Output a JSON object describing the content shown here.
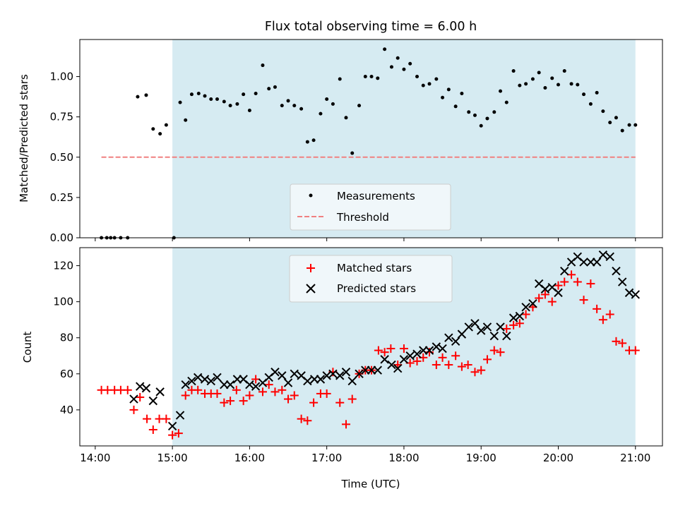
{
  "figure": {
    "title": "Flux total observing time = 6.00 h",
    "xlabel": "Time (UTC)"
  },
  "chart_data": [
    {
      "type": "scatter",
      "panel": "top",
      "title": "Flux total observing time = 6.00 h",
      "xlabel": "",
      "ylabel": "Matched/Predicted stars",
      "x_unit": "hours UTC",
      "xlim": [
        13.8,
        21.35
      ],
      "ylim": [
        0.0,
        1.23
      ],
      "xticks": [
        14,
        15,
        16,
        17,
        18,
        19,
        20,
        21
      ],
      "xtick_labels": [
        "",
        "",
        "",
        "",
        "",
        "",
        "",
        ""
      ],
      "yticks": [
        0.0,
        0.25,
        0.5,
        0.75,
        1.0
      ],
      "ytick_labels": [
        "0.00",
        "0.25",
        "0.50",
        "0.75",
        "1.00"
      ],
      "shaded_region": {
        "x": [
          15.0,
          21.0
        ],
        "color": "#add8e6"
      },
      "legend": {
        "placement": "lower center",
        "entries": [
          "Measurements",
          "Threshold"
        ]
      },
      "series": [
        {
          "name": "Measurements",
          "marker": "dot",
          "color": "#000000",
          "x": [
            14.08,
            14.15,
            14.2,
            14.25,
            14.33,
            14.42,
            14.55,
            14.66,
            14.75,
            14.84,
            14.92,
            15.02,
            15.1,
            15.17,
            15.25,
            15.34,
            15.42,
            15.5,
            15.58,
            15.67,
            15.75,
            15.84,
            15.92,
            16.0,
            16.08,
            16.17,
            16.25,
            16.33,
            16.42,
            16.5,
            16.58,
            16.67,
            16.75,
            16.83,
            16.92,
            17.0,
            17.08,
            17.17,
            17.25,
            17.33,
            17.42,
            17.5,
            17.58,
            17.66,
            17.75,
            17.84,
            17.92,
            18.0,
            18.08,
            18.17,
            18.25,
            18.33,
            18.42,
            18.5,
            18.58,
            18.67,
            18.75,
            18.84,
            18.92,
            19.0,
            19.08,
            19.17,
            19.25,
            19.33,
            19.42,
            19.5,
            19.58,
            19.67,
            19.75,
            19.83,
            19.92,
            20.0,
            20.08,
            20.17,
            20.25,
            20.33,
            20.42,
            20.5,
            20.58,
            20.67,
            20.75,
            20.83,
            20.92,
            21.0
          ],
          "y": [
            0.0,
            0.0,
            0.0,
            0.0,
            0.0,
            0.0,
            0.875,
            0.885,
            0.675,
            0.645,
            0.7,
            0.0,
            0.84,
            0.73,
            0.89,
            0.895,
            0.88,
            0.86,
            0.86,
            0.845,
            0.82,
            0.83,
            0.89,
            0.79,
            0.895,
            1.07,
            0.925,
            0.935,
            0.82,
            0.85,
            0.82,
            0.8,
            0.595,
            0.605,
            0.77,
            0.86,
            0.83,
            0.985,
            0.745,
            0.525,
            0.82,
            1.0,
            1.0,
            0.99,
            1.17,
            1.06,
            1.115,
            1.045,
            1.08,
            1.0,
            0.945,
            0.955,
            0.985,
            0.87,
            0.92,
            0.815,
            0.895,
            0.78,
            0.76,
            0.695,
            0.74,
            0.78,
            0.91,
            0.84,
            1.035,
            0.945,
            0.955,
            0.985,
            1.025,
            0.93,
            0.99,
            0.95,
            1.035,
            0.955,
            0.95,
            0.89,
            0.83,
            0.9,
            0.785,
            0.715,
            0.745,
            0.665,
            0.7,
            0.7
          ]
        },
        {
          "name": "Threshold",
          "style": "dashed",
          "color": "#f08080",
          "x": [
            14.08,
            21.0
          ],
          "y": [
            0.5,
            0.5
          ]
        }
      ]
    },
    {
      "type": "scatter",
      "panel": "bottom",
      "title": "",
      "xlabel": "Time (UTC)",
      "ylabel": "Count",
      "x_unit": "hours UTC",
      "xlim": [
        13.8,
        21.35
      ],
      "ylim": [
        20,
        130
      ],
      "xticks": [
        14,
        15,
        16,
        17,
        18,
        19,
        20,
        21
      ],
      "xtick_labels": [
        "14:00",
        "15:00",
        "16:00",
        "17:00",
        "18:00",
        "19:00",
        "20:00",
        "21:00"
      ],
      "yticks": [
        40,
        60,
        80,
        100,
        120
      ],
      "ytick_labels": [
        "40",
        "60",
        "80",
        "100",
        "120"
      ],
      "shaded_region": {
        "x": [
          15.0,
          21.0
        ],
        "color": "#add8e6"
      },
      "legend": {
        "placement": "upper center",
        "entries": [
          "Matched stars",
          "Predicted stars"
        ]
      },
      "series": [
        {
          "name": "Matched stars",
          "marker": "plus",
          "color": "#ff0000",
          "x": [
            14.08,
            14.16,
            14.25,
            14.33,
            14.42,
            14.5,
            14.58,
            14.67,
            14.75,
            14.83,
            14.92,
            15.0,
            15.08,
            15.17,
            15.25,
            15.33,
            15.42,
            15.5,
            15.58,
            15.67,
            15.75,
            15.83,
            15.92,
            16.0,
            16.08,
            16.17,
            16.25,
            16.33,
            16.42,
            16.5,
            16.58,
            16.67,
            16.75,
            16.83,
            16.92,
            17.0,
            17.08,
            17.17,
            17.25,
            17.33,
            17.42,
            17.5,
            17.58,
            17.67,
            17.75,
            17.83,
            17.92,
            18.0,
            18.08,
            18.17,
            18.25,
            18.33,
            18.42,
            18.5,
            18.58,
            18.67,
            18.75,
            18.83,
            18.92,
            19.0,
            19.08,
            19.17,
            19.25,
            19.33,
            19.42,
            19.5,
            19.58,
            19.67,
            19.75,
            19.83,
            19.92,
            20.0,
            20.08,
            20.17,
            20.25,
            20.33,
            20.42,
            20.5,
            20.58,
            20.67,
            20.75,
            20.83,
            20.92,
            21.0
          ],
          "y": [
            51,
            51,
            51,
            51,
            51,
            40,
            47,
            35,
            29,
            35,
            35,
            26,
            27,
            48,
            51,
            51,
            49,
            49,
            49,
            44,
            45,
            51,
            45,
            48,
            57,
            50,
            54,
            50,
            51,
            46,
            48,
            35,
            34,
            44,
            49,
            49,
            61,
            44,
            32,
            46,
            60,
            62,
            62,
            73,
            72,
            74,
            65,
            74,
            66,
            67,
            69,
            72,
            65,
            69,
            65,
            70,
            64,
            65,
            61,
            62,
            68,
            73,
            72,
            85,
            87,
            88,
            93,
            97,
            102,
            104,
            100,
            109,
            111,
            115,
            111,
            101,
            110,
            96,
            90,
            93,
            78,
            77,
            73,
            73
          ]
        },
        {
          "name": "Predicted stars",
          "marker": "x",
          "color": "#000000",
          "x": [
            14.5,
            14.58,
            14.66,
            14.75,
            14.84,
            15.0,
            15.1,
            15.17,
            15.25,
            15.33,
            15.42,
            15.5,
            15.58,
            15.67,
            15.75,
            15.84,
            15.92,
            16.0,
            16.08,
            16.17,
            16.25,
            16.33,
            16.42,
            16.5,
            16.58,
            16.67,
            16.75,
            16.84,
            16.92,
            17.0,
            17.08,
            17.17,
            17.25,
            17.33,
            17.42,
            17.5,
            17.58,
            17.66,
            17.75,
            17.84,
            17.92,
            18.0,
            18.08,
            18.17,
            18.25,
            18.33,
            18.42,
            18.5,
            18.58,
            18.67,
            18.75,
            18.84,
            18.92,
            19.0,
            19.08,
            19.17,
            19.25,
            19.33,
            19.42,
            19.5,
            19.58,
            19.67,
            19.75,
            19.83,
            19.92,
            20.0,
            20.08,
            20.17,
            20.25,
            20.33,
            20.42,
            20.5,
            20.58,
            20.67,
            20.75,
            20.83,
            20.92,
            21.0
          ],
          "y": [
            46,
            53,
            52,
            45,
            50,
            31,
            37,
            54,
            56,
            58,
            57,
            56,
            58,
            54,
            54,
            57,
            57,
            54,
            53,
            55,
            58,
            61,
            59,
            55,
            60,
            59,
            56,
            57,
            57,
            59,
            60,
            59,
            61,
            56,
            60,
            62,
            62,
            62,
            68,
            65,
            63,
            68,
            70,
            71,
            73,
            73,
            75,
            74,
            80,
            78,
            82,
            86,
            88,
            84,
            86,
            81,
            86,
            81,
            91,
            92,
            97,
            99,
            110,
            107,
            108,
            105,
            117,
            122,
            125,
            122,
            122,
            122,
            126,
            125,
            117,
            111,
            105,
            104
          ]
        }
      ]
    }
  ]
}
